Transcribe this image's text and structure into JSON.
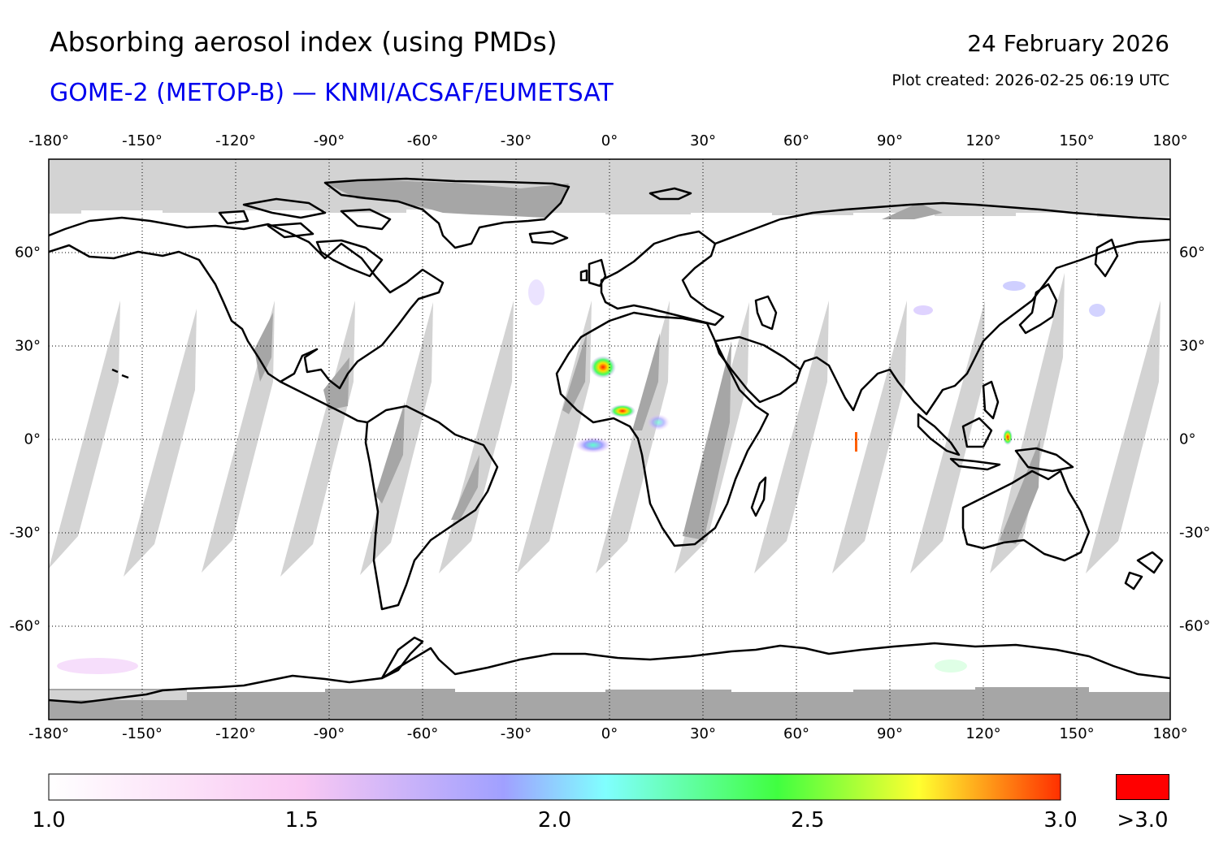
{
  "header": {
    "title": "Absorbing aerosol index (using PMDs)",
    "subtitle": "GOME-2 (METOP-B) — KNMI/ACSAF/EUMETSAT",
    "date": "24 February 2026",
    "created": "Plot created: 2026-02-25 06:19 UTC"
  },
  "map": {
    "projection": "equirectangular",
    "lon_range": [
      -180,
      180
    ],
    "lat_range": [
      -90,
      90
    ],
    "lon_ticks": [
      "-180°",
      "-150°",
      "-120°",
      "-90°",
      "-60°",
      "-30°",
      "0°",
      "30°",
      "60°",
      "90°",
      "120°",
      "150°",
      "180°"
    ],
    "lat_ticks": [
      "60°",
      "30°",
      "0°",
      "-30°",
      "-60°"
    ],
    "lon_values": [
      -180,
      -150,
      -120,
      -90,
      -60,
      -30,
      0,
      30,
      60,
      90,
      120,
      150,
      180
    ],
    "lat_values": [
      60,
      30,
      0,
      -30,
      -60
    ],
    "hotspots": [
      {
        "name": "west-sahara-dust",
        "lon": -2,
        "lat": 24,
        "value": 3.2
      },
      {
        "name": "gulf-of-guinea-smoke",
        "lon": 4,
        "lat": 9,
        "value": 3.1
      },
      {
        "name": "equatorial-atlantic",
        "lon": -5,
        "lat": -1,
        "value": 1.9
      },
      {
        "name": "indonesia-hotspot",
        "lon": 128,
        "lat": 1,
        "value": 3.2
      },
      {
        "name": "indian-ocean-streak",
        "lon": 79,
        "lat": -2,
        "value": 2.8
      }
    ],
    "colors": {
      "no_data": "#d3d3d3",
      "polar_night": "#a6a6a6",
      "overlap": "#a6a6a6",
      "coast": "#000000",
      "grid": "#000000"
    }
  },
  "colorbar": {
    "min": 1.0,
    "max": 3.0,
    "labels": [
      "1.0",
      "1.5",
      "2.0",
      "2.5",
      "3.0"
    ],
    "over_label": ">3.0",
    "over_color": "#ff0000",
    "stops": [
      "#ffffff",
      "#f9c8f3",
      "#a0a0ff",
      "#80ffff",
      "#40ff40",
      "#ffff30",
      "#ff3000"
    ]
  }
}
